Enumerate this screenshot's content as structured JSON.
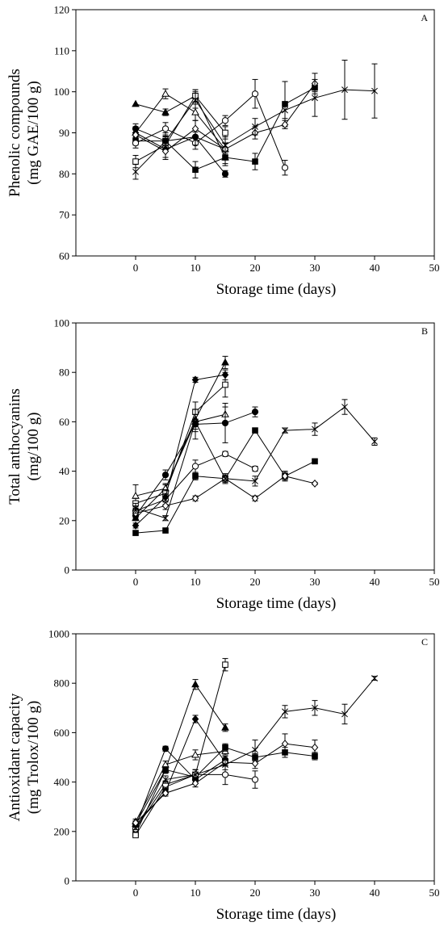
{
  "figure": {
    "panel_count": 3
  },
  "chart_data": [
    {
      "type": "line",
      "panel_label": "A",
      "xlabel": "Storage time (days)",
      "ylabel_lines": [
        "Phenolic compounds",
        "(mg GAE/100 g)"
      ],
      "xlim": [
        -10,
        50
      ],
      "ylim": [
        60,
        120
      ],
      "xticks": [
        0,
        10,
        20,
        30,
        40,
        50
      ],
      "yticks": [
        60,
        70,
        80,
        90,
        100,
        110,
        120
      ],
      "grid": false,
      "legend": "none",
      "series": [
        {
          "marker": "triangle-filled",
          "x": [
            0,
            5,
            10,
            15
          ],
          "y": [
            97,
            95,
            99,
            84
          ],
          "err": [
            0,
            0.8,
            1.5,
            2
          ]
        },
        {
          "marker": "triangle-open",
          "x": [
            0,
            5,
            10,
            15
          ],
          "y": [
            90,
            99.5,
            95,
            86
          ],
          "err": [
            1.5,
            1.2,
            2,
            1.5
          ]
        },
        {
          "marker": "square-filled",
          "x": [
            0,
            5,
            10,
            15,
            20,
            25,
            30
          ],
          "y": [
            88,
            88,
            81,
            84,
            83,
            97,
            101
          ],
          "err": [
            1,
            1,
            2,
            1.5,
            2,
            5.5,
            1
          ]
        },
        {
          "marker": "square-open",
          "x": [
            0,
            5,
            10,
            15
          ],
          "y": [
            83,
            87,
            99,
            90
          ],
          "err": [
            1.5,
            1.5,
            1.5,
            1.5
          ]
        },
        {
          "marker": "circle-filled",
          "x": [
            0,
            5,
            10,
            15
          ],
          "y": [
            91,
            88,
            89,
            80
          ],
          "err": [
            1.2,
            1.2,
            1.2,
            0.8
          ]
        },
        {
          "marker": "circle-open",
          "x": [
            0,
            5,
            10,
            15,
            20,
            25
          ],
          "y": [
            87.5,
            91,
            87.5,
            93,
            99.5,
            81.5
          ],
          "err": [
            1.2,
            1.5,
            1.5,
            1.2,
            3.5,
            1.8
          ]
        },
        {
          "marker": "diamond-filled",
          "x": [
            0,
            5,
            10,
            15
          ],
          "y": [
            90,
            86,
            89,
            86
          ],
          "err": [
            1.2,
            2.5,
            2,
            1.5
          ]
        },
        {
          "marker": "diamond-open",
          "x": [
            0,
            5,
            10,
            15,
            20,
            25,
            30
          ],
          "y": [
            89.5,
            85.5,
            91,
            86,
            90,
            92,
            102
          ],
          "err": [
            1.2,
            1.5,
            2,
            1.5,
            1.5,
            1,
            2.5
          ]
        },
        {
          "marker": "x",
          "x": [
            0,
            5,
            10,
            15,
            20,
            25,
            30,
            35,
            40
          ],
          "y": [
            80.5,
            88,
            98,
            87,
            91.5,
            95.5,
            98.5,
            100.5,
            100.2
          ],
          "err": [
            1.8,
            2,
            2,
            2,
            2,
            2,
            4.5,
            7.2,
            6.6
          ]
        }
      ]
    },
    {
      "type": "line",
      "panel_label": "B",
      "xlabel": "Storage time (days)",
      "ylabel_lines": [
        "Total anthocyanins",
        "(mg/100 g)"
      ],
      "xlim": [
        -10,
        50
      ],
      "ylim": [
        0,
        100
      ],
      "xticks": [
        0,
        10,
        20,
        30,
        40,
        50
      ],
      "yticks": [
        0,
        20,
        40,
        60,
        80,
        100
      ],
      "grid": false,
      "legend": "none",
      "series": [
        {
          "marker": "triangle-filled",
          "x": [
            0,
            5,
            10,
            15
          ],
          "y": [
            21,
            33,
            61,
            84
          ],
          "err": [
            1,
            1.5,
            3,
            2.5
          ]
        },
        {
          "marker": "triangle-open",
          "x": [
            0,
            5,
            10,
            15
          ],
          "y": [
            30,
            33,
            60,
            63
          ],
          "err": [
            4.5,
            2,
            4,
            3
          ]
        },
        {
          "marker": "square-filled",
          "x": [
            0,
            5,
            10,
            15,
            20,
            25,
            30
          ],
          "y": [
            15,
            16,
            38,
            37,
            56.5,
            38,
            44
          ],
          "err": [
            0.5,
            0.8,
            1.5,
            1.5,
            1,
            1.5,
            0.5
          ]
        },
        {
          "marker": "square-open",
          "x": [
            0,
            5,
            10,
            15
          ],
          "y": [
            27,
            31,
            64,
            75
          ],
          "err": [
            2,
            1.5,
            4,
            5
          ]
        },
        {
          "marker": "circle-filled",
          "x": [
            0,
            5,
            10,
            15,
            20
          ],
          "y": [
            22,
            38.5,
            59,
            59.5,
            64
          ],
          "err": [
            1,
            2,
            6,
            8,
            2
          ]
        },
        {
          "marker": "circle-open",
          "x": [
            0,
            5,
            10,
            15,
            20
          ],
          "y": [
            24,
            28.5,
            42,
            47,
            41
          ],
          "err": [
            1,
            2,
            2.5,
            1,
            1
          ]
        },
        {
          "marker": "diamond-filled",
          "x": [
            0,
            5,
            10,
            15
          ],
          "y": [
            18,
            29.5,
            77,
            79
          ],
          "err": [
            1,
            1.5,
            1,
            2
          ]
        },
        {
          "marker": "diamond-open",
          "x": [
            0,
            5,
            10,
            15,
            20,
            25,
            30
          ],
          "y": [
            23,
            26,
            29,
            37,
            29,
            38,
            35
          ],
          "err": [
            1.5,
            1.5,
            1,
            1,
            1,
            2,
            0.5
          ]
        },
        {
          "marker": "x",
          "x": [
            0,
            5,
            10,
            15,
            20,
            25,
            30,
            35,
            40
          ],
          "y": [
            25,
            21,
            60,
            37,
            36,
            56.5,
            57,
            66,
            52
          ],
          "err": [
            2,
            1,
            3,
            2,
            2,
            1,
            2.5,
            3,
            1.5
          ]
        }
      ]
    },
    {
      "type": "line",
      "panel_label": "C",
      "xlabel": "Storage time (days)",
      "ylabel_lines": [
        "Antioxidant capacity",
        "(mg Trolox/100 g)"
      ],
      "xlim": [
        -10,
        50
      ],
      "ylim": [
        0,
        1000
      ],
      "xticks": [
        0,
        10,
        20,
        30,
        40,
        50
      ],
      "yticks": [
        0,
        200,
        400,
        600,
        800,
        1000
      ],
      "grid": false,
      "legend": "none",
      "series": [
        {
          "marker": "triangle-filled",
          "x": [
            0,
            5,
            10,
            15
          ],
          "y": [
            230,
            450,
            795,
            620
          ],
          "err": [
            10,
            15,
            20,
            15
          ]
        },
        {
          "marker": "triangle-open",
          "x": [
            0,
            5,
            10,
            15
          ],
          "y": [
            240,
            470,
            510,
            525
          ],
          "err": [
            10,
            15,
            20,
            15
          ]
        },
        {
          "marker": "square-filled",
          "x": [
            0,
            5,
            10,
            15,
            20,
            25,
            30
          ],
          "y": [
            190,
            450,
            420,
            540,
            500,
            520,
            505
          ],
          "err": [
            8,
            12,
            15,
            15,
            15,
            20,
            15
          ]
        },
        {
          "marker": "square-open",
          "x": [
            0,
            5,
            10,
            15
          ],
          "y": [
            185,
            380,
            430,
            875
          ],
          "err": [
            8,
            15,
            20,
            25
          ]
        },
        {
          "marker": "circle-filled",
          "x": [
            0,
            5,
            10,
            15
          ],
          "y": [
            220,
            535,
            410,
            490
          ],
          "err": [
            8,
            10,
            15,
            15
          ]
        },
        {
          "marker": "circle-open",
          "x": [
            0,
            5,
            10,
            15,
            20
          ],
          "y": [
            210,
            390,
            430,
            430,
            410
          ],
          "err": [
            8,
            15,
            20,
            40,
            35
          ]
        },
        {
          "marker": "diamond-filled",
          "x": [
            0,
            5,
            10,
            15
          ],
          "y": [
            225,
            360,
            655,
            480
          ],
          "err": [
            8,
            12,
            15,
            15
          ]
        },
        {
          "marker": "diamond-open",
          "x": [
            0,
            5,
            10,
            15,
            20,
            25,
            30
          ],
          "y": [
            235,
            355,
            395,
            480,
            475,
            555,
            540
          ],
          "err": [
            8,
            12,
            15,
            15,
            20,
            40,
            30
          ]
        },
        {
          "marker": "x",
          "x": [
            0,
            5,
            10,
            15,
            20,
            25,
            30,
            35,
            40
          ],
          "y": [
            215,
            410,
            430,
            470,
            530,
            685,
            700,
            675,
            820
          ],
          "err": [
            8,
            15,
            20,
            20,
            40,
            25,
            30,
            40,
            8
          ]
        }
      ]
    }
  ]
}
